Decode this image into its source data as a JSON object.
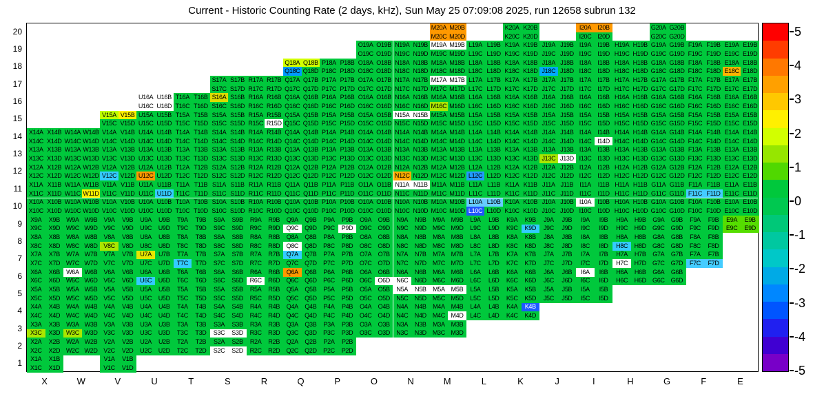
{
  "title": "Current - Historic Counting Rate (2 days, kHz), Sun May 25 07:09:08 2025, run 12658 subrun 132",
  "chart_data": {
    "type": "heatmap",
    "title": "Current - Historic Counting Rate (2 days, kHz), Sun May 25 07:09:08 2025, run 12658 subrun 132",
    "x_categories": [
      "X",
      "W",
      "V",
      "U",
      "T",
      "S",
      "R",
      "Q",
      "P",
      "O",
      "N",
      "M",
      "L",
      "K",
      "J",
      "I",
      "H",
      "G",
      "F",
      "E"
    ],
    "y_categories": [
      "20",
      "19",
      "18",
      "17",
      "16",
      "15",
      "14",
      "13",
      "12",
      "11",
      "10",
      "9",
      "8",
      "7",
      "6",
      "5",
      "4",
      "3",
      "2",
      "1"
    ],
    "channel_suffixes": [
      "A",
      "B",
      "C",
      "D"
    ],
    "default_color": "#00C83C",
    "populated_rows": {
      "20": [
        "M",
        "K",
        "I",
        "G"
      ],
      "19": [
        "O",
        "N",
        "M",
        "L",
        "K",
        "J",
        "I",
        "H",
        "G",
        "F",
        "E"
      ],
      "18": [
        "Q",
        "P",
        "O",
        "N",
        "M",
        "L",
        "K",
        "J",
        "I",
        "H",
        "G",
        "F",
        "E"
      ],
      "17": [
        "S",
        "R",
        "Q",
        "P",
        "O",
        "N",
        "M",
        "L",
        "K",
        "J",
        "I",
        "H",
        "G",
        "F",
        "E"
      ],
      "16": [
        "U",
        "T",
        "S",
        "R",
        "Q",
        "P",
        "O",
        "N",
        "M",
        "L",
        "K",
        "J",
        "I",
        "H",
        "G",
        "F",
        "E"
      ],
      "15": [
        "V",
        "U",
        "T",
        "S",
        "R",
        "Q",
        "P",
        "O",
        "N",
        "M",
        "L",
        "K",
        "J",
        "I",
        "H",
        "G",
        "F",
        "E"
      ],
      "14": [
        "X",
        "W",
        "V",
        "U",
        "T",
        "S",
        "R",
        "Q",
        "P",
        "O",
        "N",
        "M",
        "L",
        "K",
        "J",
        "I",
        "H",
        "G",
        "F",
        "E"
      ],
      "13": [
        "X",
        "W",
        "V",
        "U",
        "T",
        "S",
        "R",
        "Q",
        "P",
        "O",
        "N",
        "M",
        "L",
        "K",
        "J",
        "I",
        "H",
        "G",
        "F",
        "E"
      ],
      "12": [
        "X",
        "W",
        "V",
        "U",
        "T",
        "S",
        "R",
        "Q",
        "P",
        "O",
        "N",
        "M",
        "L",
        "K",
        "J",
        "I",
        "H",
        "G",
        "F",
        "E"
      ],
      "11": [
        "X",
        "W",
        "V",
        "U",
        "T",
        "S",
        "R",
        "Q",
        "P",
        "O",
        "N",
        "M",
        "L",
        "K",
        "J",
        "I",
        "H",
        "G",
        "F",
        "E"
      ],
      "10": [
        "X",
        "W",
        "V",
        "U",
        "T",
        "S",
        "R",
        "Q",
        "P",
        "O",
        "N",
        "M",
        "L",
        "K",
        "J",
        "I",
        "H",
        "G",
        "F",
        "E"
      ],
      "9": [
        "X",
        "W",
        "V",
        "U",
        "T",
        "S",
        "R",
        "Q",
        "P",
        "O",
        "N",
        "M",
        "L",
        "K",
        "J",
        "I",
        "H",
        "G",
        "F",
        "E"
      ],
      "8": [
        "X",
        "W",
        "V",
        "U",
        "T",
        "S",
        "R",
        "Q",
        "P",
        "O",
        "N",
        "M",
        "L",
        "K",
        "J",
        "I",
        "H",
        "G",
        "F"
      ],
      "7": [
        "X",
        "W",
        "V",
        "U",
        "T",
        "S",
        "R",
        "Q",
        "P",
        "O",
        "N",
        "M",
        "L",
        "K",
        "J",
        "I",
        "H",
        "G",
        "F"
      ],
      "6": [
        "X",
        "W",
        "V",
        "U",
        "T",
        "S",
        "R",
        "Q",
        "P",
        "O",
        "N",
        "M",
        "L",
        "K",
        "J",
        "I",
        "H",
        "G"
      ],
      "5": [
        "X",
        "W",
        "V",
        "U",
        "T",
        "S",
        "R",
        "Q",
        "P",
        "O",
        "N",
        "M",
        "L",
        "K",
        "J",
        "I"
      ],
      "4": [
        "X",
        "W",
        "V",
        "U",
        "T",
        "S",
        "R",
        "Q",
        "P",
        "O",
        "N",
        "M",
        "L",
        "K"
      ],
      "3": [
        "X",
        "W",
        "V",
        "U",
        "T",
        "S",
        "R",
        "Q",
        "P",
        "O",
        "N",
        "M"
      ],
      "2": [
        "X",
        "W",
        "V",
        "U",
        "T",
        "S",
        "R",
        "Q",
        "P"
      ],
      "1": [
        "X",
        "V"
      ]
    },
    "anomalous_channels": {
      "M20A": "#FF9900",
      "M20B": "#FF9900",
      "M20C": "#FF9900",
      "M20D": "#FF9900",
      "I20A": "#FF9900",
      "I20B": "#FF9900",
      "M19A": "#FFFFFF",
      "M19B": "#FFFFFF",
      "Q18A": "#D2FF00",
      "Q18B": "#D2FF00",
      "Q18C": "#0099FF",
      "J18C": "#00AAFF",
      "E18C": "#FFB400",
      "M17A": "#FFFFFF",
      "M17B": "#FFFFFF",
      "U16A": "#FFFFFF",
      "U16B": "#FFFFFF",
      "U16C": "#FFFFFF",
      "U16D": "#FFFFFF",
      "S16A": "#DCDC00",
      "M16C": "#AAE600",
      "V15A": "#BEFF00",
      "V15B": "#FFF000",
      "N15A": "#FFFFFF",
      "N15B": "#FFFFFF",
      "R15D": "#FFFFFF",
      "I14D": "#FFFFFF",
      "J13C": "#AAE600",
      "J13D": "#FFFFFF",
      "V12C": "#33CCFF",
      "U12C": "#FF9900",
      "N12C": "#FFAA00",
      "L12C": "#2299FF",
      "W11D": "#FFF000",
      "U11D": "#33CCFF",
      "N11A": "#FFFFFF",
      "N11B": "#FFFFFF",
      "F11C": "#44CCFF",
      "F11D": "#44CCFF",
      "L10A": "#66CCFF",
      "L10B": "#66CCFF",
      "L10C": "#2255FF",
      "I10A": "#FFFFFF",
      "E9A": "#55DD00",
      "E9B": "#55DD00",
      "E9C": "#55DD00",
      "E9D": "#55DD00",
      "Q9C": "#FFFFFF",
      "P9D": "#FFFFFF",
      "K9D": "#33CCFF",
      "V8C": "#AAE600",
      "Q8C": "#FFFFFF",
      "H8C": "#33CCFF",
      "U7A": "#E6E600",
      "T7C": "#33CCFF",
      "Q7A": "#33CCFF",
      "H7C": "#FFFFFF",
      "F7C": "#44CCFF",
      "F7D": "#44CCFF",
      "W6A": "#FFFFFF",
      "U6C": "#33CCFF",
      "R6C": "#FFFFFF",
      "Q6A": "#FF9900",
      "O6D": "#FFFFFF",
      "N6C": "#FFFFFF",
      "I6A": "#FFFFFF",
      "N5A": "#FFFFFF",
      "N5B": "#FFFFFF",
      "M5A": "#FFFFFF",
      "M5B": "#FFFFFF",
      "K4B": "#1E5AFF",
      "M4D": "#FFFFFF",
      "X3C": "#AAE600",
      "W3C": "#AAE600",
      "S3C": "#FFFFFF",
      "S3D": "#FFFFFF",
      "S2C": "#FFFFFF",
      "S2D": "#FFFFFF"
    },
    "colorbar": {
      "min": -5,
      "max": 5,
      "tick_labels": [
        "5",
        "4",
        "3",
        "2",
        "1",
        "0",
        "-1",
        "-2",
        "-3",
        "-4",
        "-5"
      ],
      "segment_colors": [
        "#FF0000",
        "#FF3C00",
        "#FF7800",
        "#FFA000",
        "#FFC800",
        "#FFF000",
        "#D2FF00",
        "#96E600",
        "#50D800",
        "#00C83C",
        "#00C850",
        "#00C878",
        "#00C8A0",
        "#00C8C8",
        "#00AAE6",
        "#0087FF",
        "#0055FF",
        "#2020F0",
        "#4000D2",
        "#7800C8"
      ]
    }
  }
}
